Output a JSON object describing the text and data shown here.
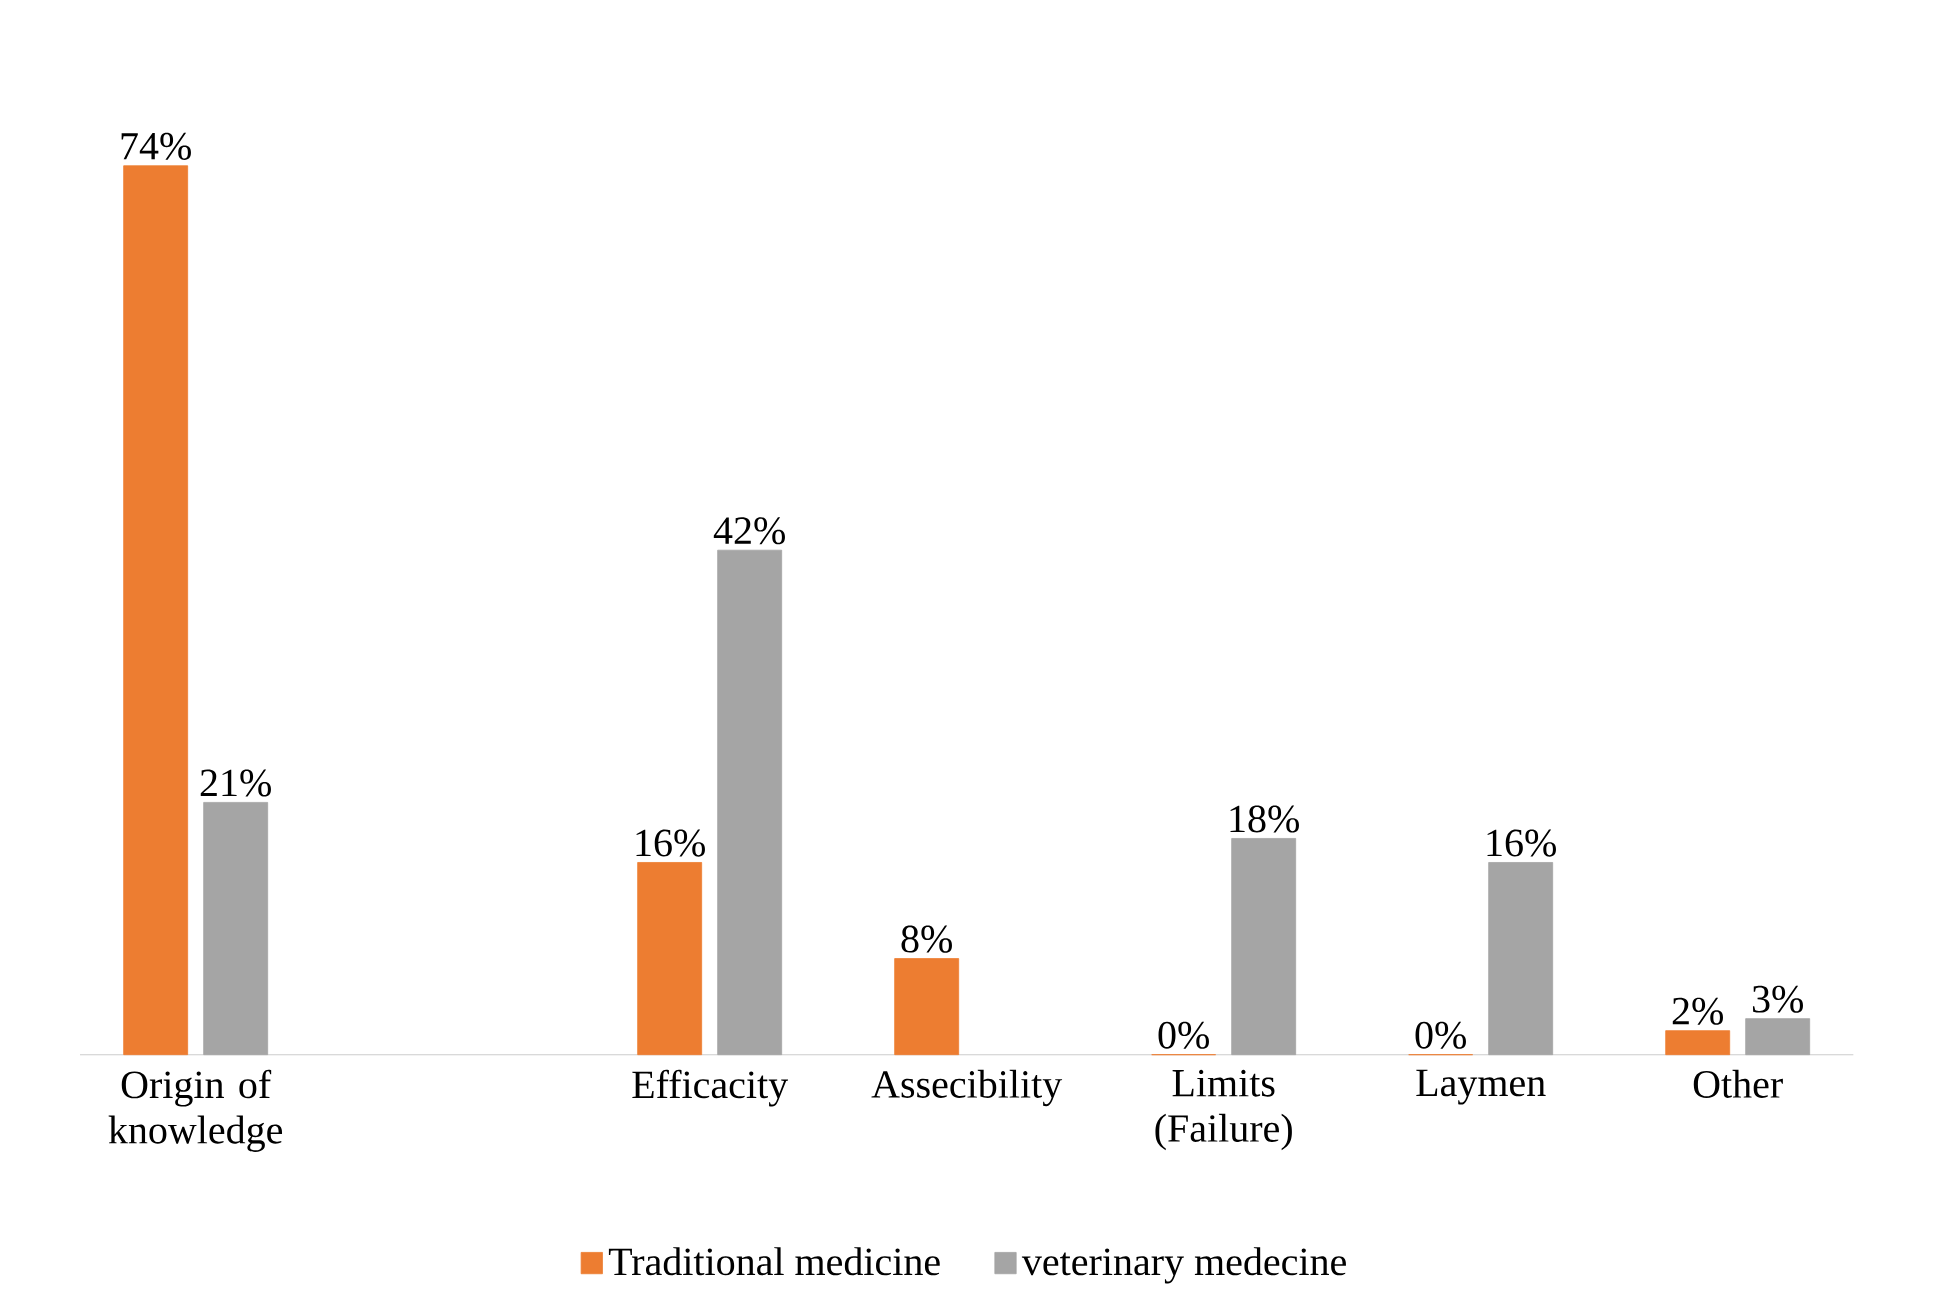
{
  "chart_data": {
    "type": "bar",
    "categories": [
      "Origin of knowledge",
      null,
      "Efficacity",
      "Assecibility",
      "Limits (Failure)",
      "Laymen",
      "Other"
    ],
    "series": [
      {
        "name": "Traditional medicine",
        "color": "#ed7d31",
        "values": [
          74,
          null,
          16,
          8,
          0,
          0,
          2
        ],
        "value_labels": [
          "74%",
          null,
          "16%",
          "8%",
          "0%",
          "0%",
          "2%"
        ]
      },
      {
        "name": "veterinary medecine",
        "color": "#a5a5a5",
        "values": [
          21,
          null,
          42,
          null,
          18,
          16,
          3
        ],
        "value_labels": [
          "21%",
          null,
          "42%",
          null,
          "18%",
          "16%",
          "3%"
        ]
      }
    ],
    "legend": "bottom"
  }
}
